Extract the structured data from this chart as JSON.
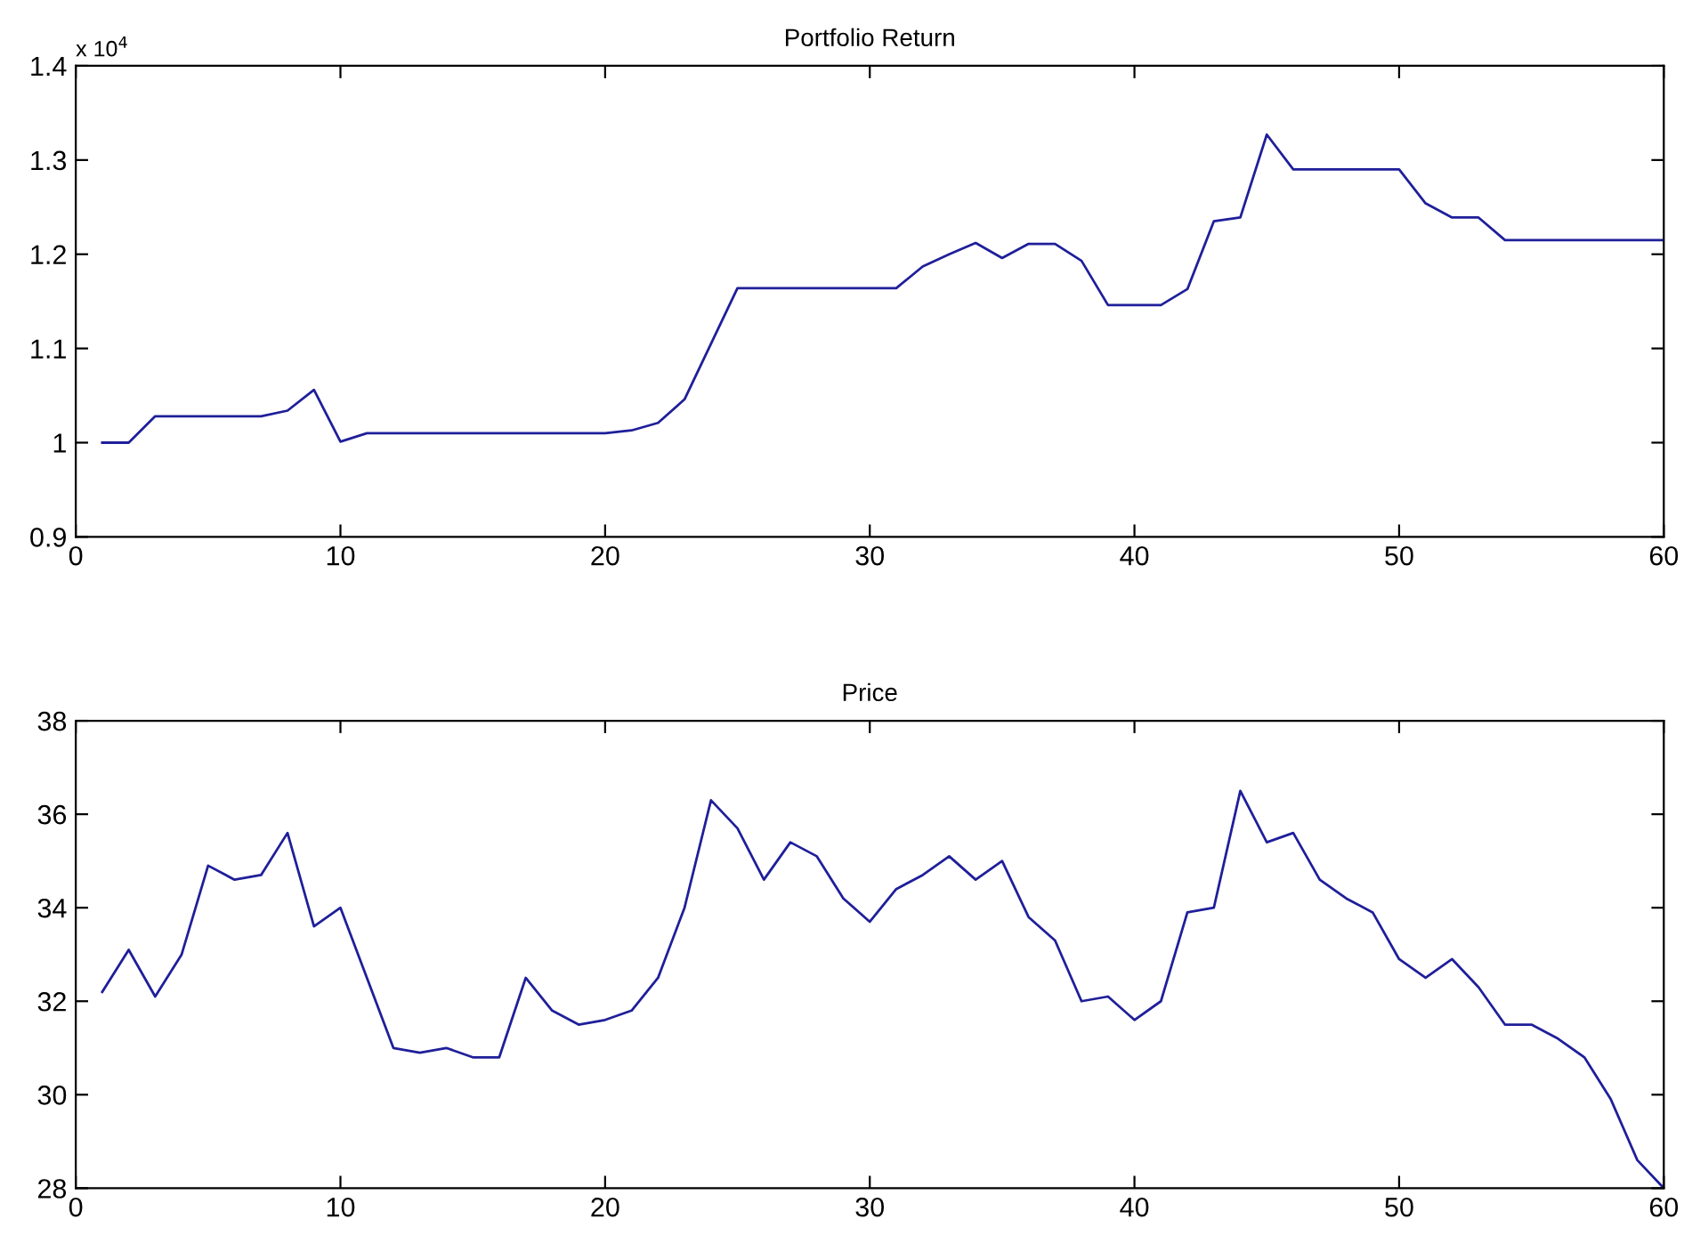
{
  "chart_data": [
    {
      "type": "line",
      "title": "Portfolio Return",
      "annotations": [
        "x 10$^{4}$"
      ],
      "x": [
        1,
        2,
        3,
        4,
        5,
        6,
        7,
        8,
        9,
        10,
        11,
        12,
        13,
        14,
        15,
        16,
        17,
        18,
        19,
        20,
        21,
        22,
        23,
        24,
        25,
        26,
        27,
        28,
        29,
        30,
        31,
        32,
        33,
        34,
        35,
        36,
        37,
        38,
        39,
        40,
        41,
        42,
        43,
        44,
        45,
        46,
        47,
        48,
        49,
        50,
        51,
        52,
        53,
        54,
        55,
        56,
        57,
        58,
        59,
        60
      ],
      "series": [
        {
          "color": "#1f1f9a",
          "values": [
            1.0,
            1.0,
            1.028,
            1.028,
            1.028,
            1.028,
            1.028,
            1.034,
            1.056,
            1.001,
            1.01,
            1.01,
            1.01,
            1.01,
            1.01,
            1.01,
            1.01,
            1.01,
            1.01,
            1.01,
            1.013,
            1.021,
            1.046,
            1.105,
            1.164,
            1.164,
            1.164,
            1.164,
            1.164,
            1.164,
            1.164,
            1.187,
            1.2,
            1.212,
            1.196,
            1.211,
            1.211,
            1.193,
            1.146,
            1.146,
            1.146,
            1.163,
            1.235,
            1.239,
            1.327,
            1.29,
            1.29,
            1.29,
            1.29,
            1.29,
            1.254,
            1.239,
            1.239,
            1.215,
            1.215,
            1.215,
            1.215,
            1.215,
            1.215,
            1.215
          ]
        }
      ],
      "xlim": [
        0,
        60
      ],
      "xticks": [
        0,
        10,
        20,
        30,
        40,
        50,
        60
      ],
      "ylim": [
        0.9,
        1.4
      ],
      "yticks": [
        0.9,
        1,
        1.1,
        1.2,
        1.3,
        1.4
      ],
      "grid": false,
      "legend": false,
      "marker": "none",
      "line_style": "solid"
    },
    {
      "type": "line",
      "title": "Price",
      "x": [
        1,
        2,
        3,
        4,
        5,
        6,
        7,
        8,
        9,
        10,
        11,
        12,
        13,
        14,
        15,
        16,
        17,
        18,
        19,
        20,
        21,
        22,
        23,
        24,
        25,
        26,
        27,
        28,
        29,
        30,
        31,
        32,
        33,
        34,
        35,
        36,
        37,
        38,
        39,
        40,
        41,
        42,
        43,
        44,
        45,
        46,
        47,
        48,
        49,
        50,
        51,
        52,
        53,
        54,
        55,
        56,
        57,
        58,
        59,
        60
      ],
      "series": [
        {
          "color": "#1f1f9a",
          "values": [
            32.2,
            33.1,
            32.1,
            33.0,
            34.9,
            34.6,
            34.7,
            35.6,
            33.6,
            34.0,
            32.5,
            31.0,
            30.9,
            31.0,
            30.8,
            30.8,
            32.5,
            31.8,
            31.5,
            31.6,
            31.8,
            32.5,
            34.0,
            36.3,
            35.7,
            34.6,
            35.4,
            35.1,
            34.2,
            33.7,
            34.4,
            34.7,
            35.1,
            34.6,
            35.0,
            33.8,
            33.3,
            32.0,
            32.1,
            31.6,
            32.0,
            33.9,
            34.0,
            36.5,
            35.4,
            35.6,
            34.6,
            34.2,
            33.9,
            32.9,
            32.5,
            32.9,
            32.3,
            31.5,
            31.5,
            31.2,
            30.8,
            29.9,
            28.6,
            28.0
          ]
        }
      ],
      "xlim": [
        0,
        60
      ],
      "xticks": [
        0,
        10,
        20,
        30,
        40,
        50,
        60
      ],
      "ylim": [
        28,
        38
      ],
      "yticks": [
        28,
        30,
        32,
        34,
        36,
        38
      ],
      "grid": false,
      "legend": false,
      "marker": "none",
      "line_style": "solid"
    }
  ]
}
